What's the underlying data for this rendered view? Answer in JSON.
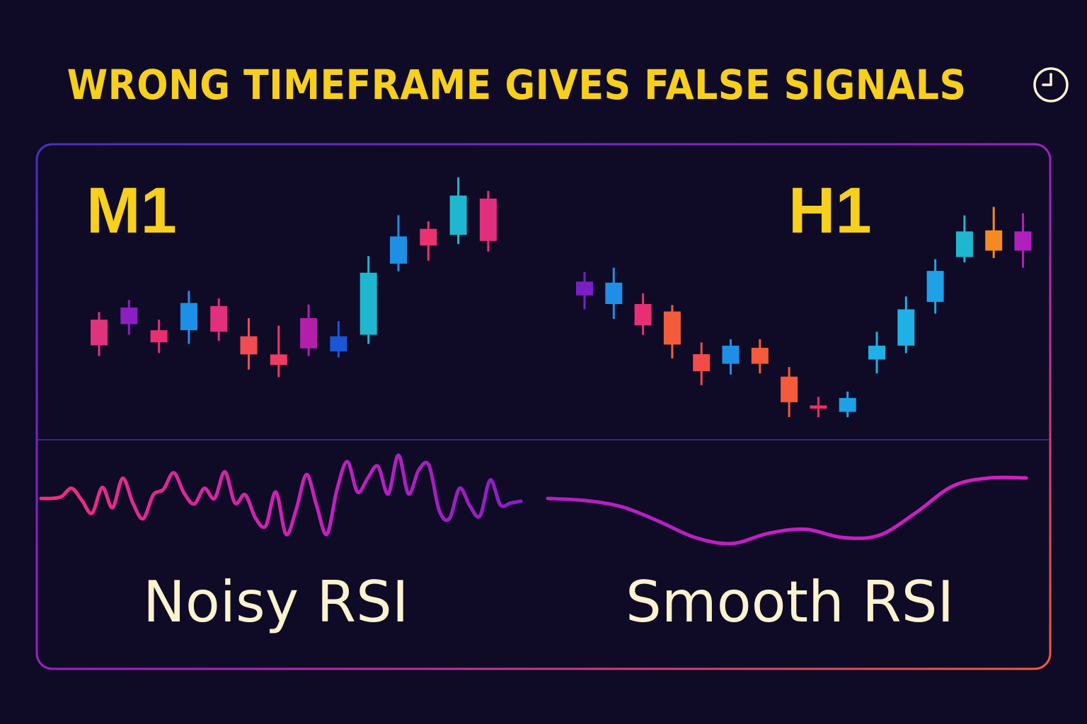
{
  "title": "WRONG TIMEFRAME GIVES FALSE SIGNALS",
  "title_icon": "clock-icon",
  "colors": {
    "background": "#0f0b26",
    "title": "#f7cf1d",
    "caption": "#fbf2cf",
    "frame_start": "#5b2fc9",
    "frame_end": "#f25c3b",
    "divider": "#3a2a7a"
  },
  "panels": [
    {
      "label": "M1",
      "caption": "Noisy RSI"
    },
    {
      "label": "H1",
      "caption": "Smooth RSI"
    }
  ],
  "chart_data": [
    {
      "type": "candlestick",
      "label": "M1",
      "price_range": [
        0,
        100
      ],
      "candles": [
        {
          "open": 28,
          "close": 11,
          "high": 33,
          "low": 4,
          "color": "#e0337e"
        },
        {
          "open": 25,
          "close": 36,
          "high": 41,
          "low": 18,
          "color": "#8a1fc4"
        },
        {
          "open": 21,
          "close": 13,
          "high": 28,
          "low": 6,
          "color": "#e82f72"
        },
        {
          "open": 21,
          "close": 39,
          "high": 47,
          "low": 12,
          "color": "#1d8fe6"
        },
        {
          "open": 37,
          "close": 20,
          "high": 42,
          "low": 14,
          "color": "#e2307e"
        },
        {
          "open": 17,
          "close": 5,
          "high": 29,
          "low": -5,
          "color": "#f14c52"
        },
        {
          "open": 5,
          "close": -2,
          "high": 24,
          "low": -10,
          "color": "#ef3a62"
        },
        {
          "open": 29,
          "close": 9,
          "high": 38,
          "low": 4,
          "color": "#b21fab"
        },
        {
          "open": 7,
          "close": 17,
          "high": 27,
          "low": 3,
          "color": "#1b55d8"
        },
        {
          "open": 18,
          "close": 59,
          "high": 70,
          "low": 12,
          "color": "#1fb7d0"
        },
        {
          "open": 65,
          "close": 83,
          "high": 97,
          "low": 60,
          "color": "#1f8fe6"
        },
        {
          "open": 77,
          "close": 88,
          "high": 93,
          "low": 67,
          "color": "#e8336e"
        },
        {
          "open": 84,
          "close": 110,
          "high": 122,
          "low": 78,
          "color": "#1fb7d0"
        },
        {
          "open": 108,
          "close": 80,
          "high": 113,
          "low": 73,
          "color": "#e2307e"
        }
      ],
      "rsi": {
        "range": [
          0,
          100
        ],
        "values": [
          50,
          50,
          52,
          61,
          48,
          34,
          62,
          40,
          72,
          45,
          28,
          54,
          60,
          78,
          56,
          44,
          61,
          50,
          79,
          45,
          54,
          29,
          20,
          57,
          11,
          38,
          76,
          42,
          11,
          60,
          90,
          57,
          72,
          85,
          55,
          97,
          55,
          81,
          86,
          37,
          28,
          61,
          42,
          31,
          70,
          43,
          45,
          47
        ]
      }
    },
    {
      "type": "candlestick",
      "label": "H1",
      "price_range": [
        0,
        100
      ],
      "candles": [
        {
          "open": 72,
          "close": 59,
          "high": 81,
          "low": 46,
          "color": "#7a1fc4"
        },
        {
          "open": 71,
          "close": 51,
          "high": 85,
          "low": 37,
          "color": "#1f8fe6"
        },
        {
          "open": 51,
          "close": 31,
          "high": 61,
          "low": 22,
          "color": "#e82f72"
        },
        {
          "open": 44,
          "close": 13,
          "high": 50,
          "low": 0,
          "color": "#f25c3b"
        },
        {
          "open": 4,
          "close": -12,
          "high": 15,
          "low": -25,
          "color": "#f14c48"
        },
        {
          "open": 12,
          "close": -5,
          "high": 18,
          "low": -15,
          "color": "#1f8fe6"
        },
        {
          "open": 10,
          "close": -5,
          "high": 18,
          "low": -14,
          "color": "#f55a3a"
        },
        {
          "open": -17,
          "close": -41,
          "high": -8,
          "low": -55,
          "color": "#f55a3a"
        },
        {
          "open": -44,
          "close": -47,
          "high": -36,
          "low": -55,
          "color": "#ef2e62"
        },
        {
          "open": -37,
          "close": -50,
          "high": -31,
          "low": -55,
          "color": "#1fa1e6"
        },
        {
          "open": -1,
          "close": 12,
          "high": 25,
          "low": -14,
          "color": "#1fb0e6"
        },
        {
          "open": 12,
          "close": 46,
          "high": 58,
          "low": 5,
          "color": "#1fb0e6"
        },
        {
          "open": 53,
          "close": 82,
          "high": 93,
          "low": 42,
          "color": "#1fa1e6"
        },
        {
          "open": 95,
          "close": 119,
          "high": 134,
          "low": 90,
          "color": "#1fb7d0"
        },
        {
          "open": 120,
          "close": 101,
          "high": 142,
          "low": 94,
          "color": "#f58a20"
        },
        {
          "open": 119,
          "close": 101,
          "high": 136,
          "low": 85,
          "color": "#b21fbf"
        }
      ],
      "rsi": {
        "range": [
          0,
          100
        ],
        "values": [
          50,
          49,
          46,
          39,
          31,
          28,
          33,
          35,
          31,
          32,
          43,
          56,
          60,
          60
        ]
      }
    }
  ]
}
